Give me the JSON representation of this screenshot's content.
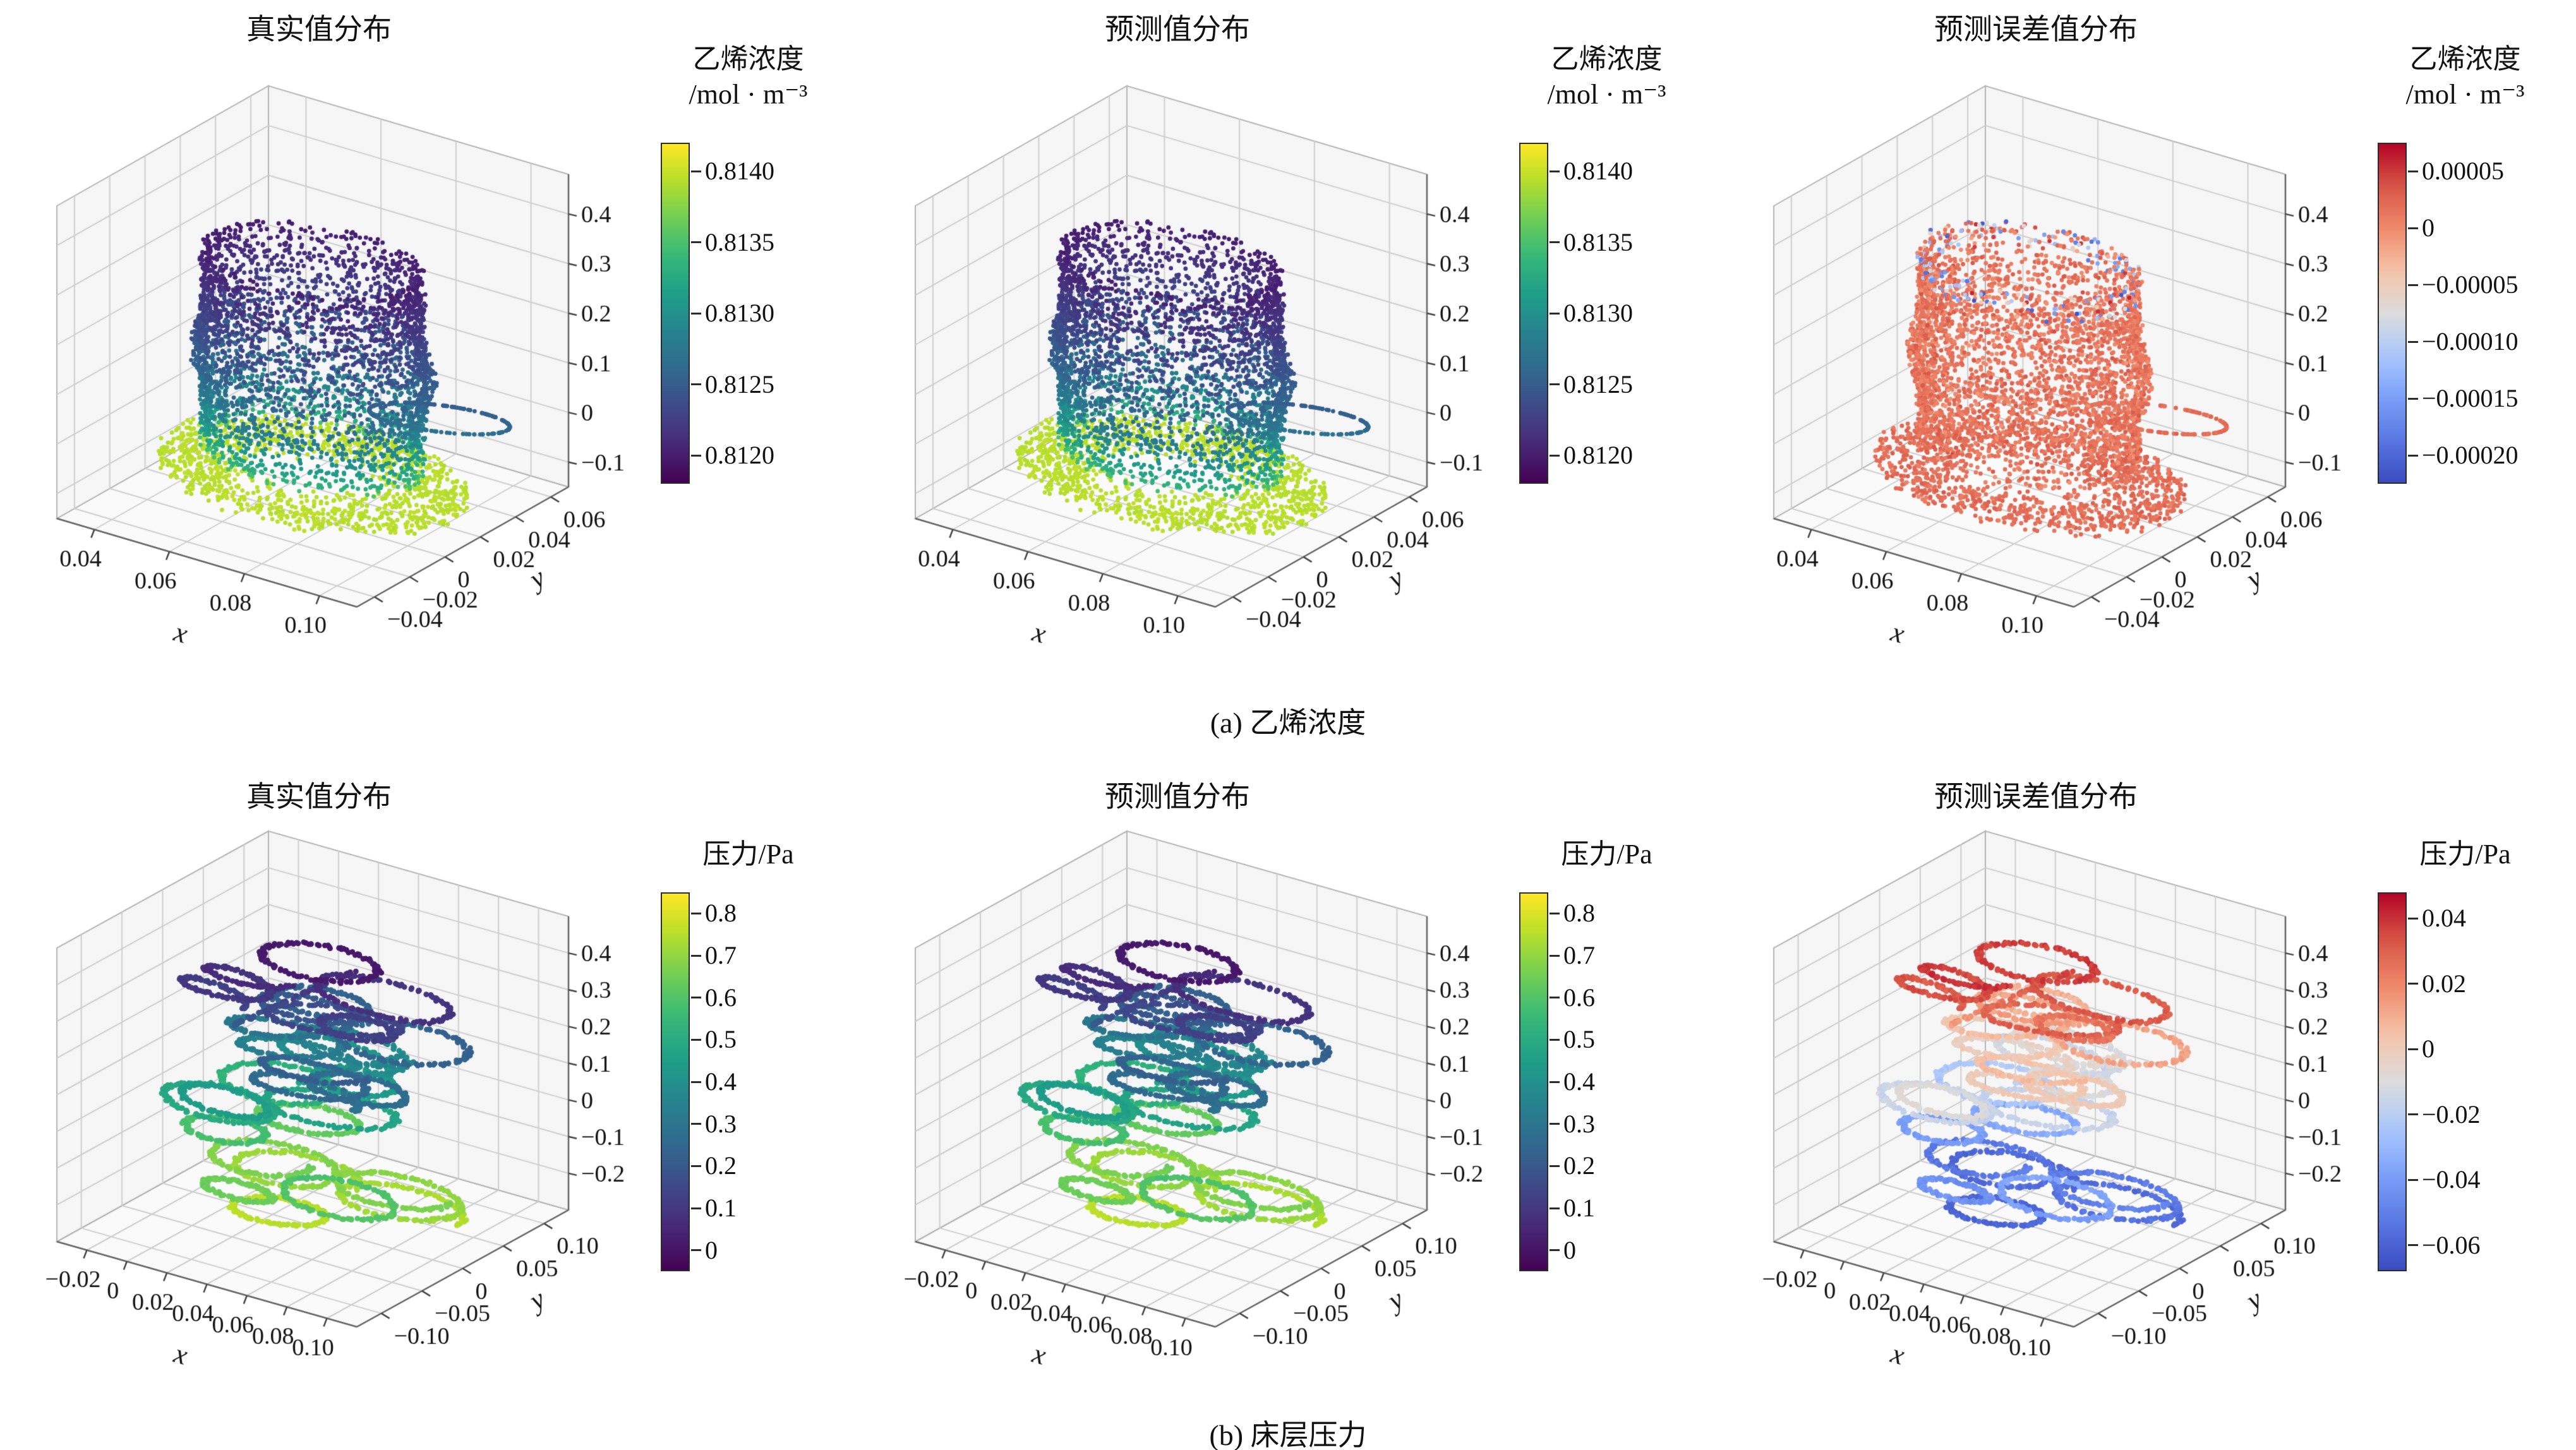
{
  "figure": {
    "background": "#ffffff",
    "captions": {
      "a": "(a) 乙烯浓度",
      "b": "(b) 床层压力"
    }
  },
  "chart_data": [
    {
      "id": "a1",
      "type": "scatter",
      "projection": "3d",
      "title": "真实值分布",
      "description": "cylindrical point cloud of true ethylene concentration",
      "x": {
        "label": "x",
        "lim": [
          0.03,
          0.11
        ],
        "tick_values": [
          0.04,
          0.06,
          0.08,
          0.1
        ],
        "tick_labels": [
          "0.04",
          "0.06",
          "0.08",
          "0.10"
        ]
      },
      "y": {
        "label": "y",
        "lim": [
          -0.05,
          0.07
        ],
        "tick_values": [
          0.06,
          0.04,
          0.02,
          0,
          -0.02,
          -0.04
        ],
        "tick_labels": [
          "0.06",
          "0.04",
          "0.02",
          "0",
          "−0.02",
          "−0.04"
        ]
      },
      "z": {
        "lim": [
          -0.15,
          0.48
        ],
        "tick_values": [
          0.4,
          0.3,
          0.2,
          0.1,
          0,
          -0.1
        ],
        "tick_labels": [
          "0.4",
          "0.3",
          "0.2",
          "0.1",
          "0",
          "−0.1"
        ]
      },
      "colorbar": {
        "title_line1": "乙烯浓度",
        "title_line2": "/mol · m⁻³",
        "colormap": "viridis",
        "vmin": 0.8118,
        "vmax": 0.8142,
        "tick_values": [
          0.814,
          0.8135,
          0.813,
          0.8125,
          0.812
        ],
        "tick_labels": [
          "0.8140",
          "0.8135",
          "0.8130",
          "0.8125",
          "0.8120"
        ]
      },
      "points": {
        "kind": "cylinder",
        "seed": 11,
        "center": [
          0.07,
          0.01
        ],
        "radius": 0.026,
        "z_range": [
          -0.07,
          0.34
        ],
        "value_model": "concentration",
        "value_range": [
          0.812,
          0.814
        ]
      }
    },
    {
      "id": "a2",
      "type": "scatter",
      "projection": "3d",
      "title": "预测值分布",
      "description": "cylindrical point cloud of predicted ethylene concentration (visually identical to true values)",
      "x": {
        "label": "x",
        "lim": [
          0.03,
          0.11
        ],
        "tick_values": [
          0.04,
          0.06,
          0.08,
          0.1
        ],
        "tick_labels": [
          "0.04",
          "0.06",
          "0.08",
          "0.10"
        ]
      },
      "y": {
        "label": "y",
        "lim": [
          -0.05,
          0.07
        ],
        "tick_values": [
          0.06,
          0.04,
          0.02,
          0,
          -0.02,
          -0.04
        ],
        "tick_labels": [
          "0.06",
          "0.04",
          "0.02",
          "0",
          "−0.02",
          "−0.04"
        ]
      },
      "z": {
        "lim": [
          -0.15,
          0.48
        ],
        "tick_values": [
          0.4,
          0.3,
          0.2,
          0.1,
          0,
          -0.1
        ],
        "tick_labels": [
          "0.4",
          "0.3",
          "0.2",
          "0.1",
          "0",
          "−0.1"
        ]
      },
      "colorbar": {
        "title_line1": "乙烯浓度",
        "title_line2": "/mol · m⁻³",
        "colormap": "viridis",
        "vmin": 0.8118,
        "vmax": 0.8142,
        "tick_values": [
          0.814,
          0.8135,
          0.813,
          0.8125,
          0.812
        ],
        "tick_labels": [
          "0.8140",
          "0.8135",
          "0.8130",
          "0.8125",
          "0.8120"
        ]
      },
      "points": {
        "kind": "cylinder",
        "seed": 11,
        "center": [
          0.07,
          0.01
        ],
        "radius": 0.026,
        "z_range": [
          -0.07,
          0.34
        ],
        "value_model": "concentration",
        "value_range": [
          0.812,
          0.814
        ]
      }
    },
    {
      "id": "a3",
      "type": "scatter",
      "projection": "3d",
      "title": "预测误差值分布",
      "description": "cylindrical point cloud of ethylene-concentration prediction error; mostly small positive (red), negative (blue) speckles at top rim",
      "x": {
        "label": "x",
        "lim": [
          0.03,
          0.11
        ],
        "tick_values": [
          0.04,
          0.06,
          0.08,
          0.1
        ],
        "tick_labels": [
          "0.04",
          "0.06",
          "0.08",
          "0.10"
        ]
      },
      "y": {
        "label": "y",
        "lim": [
          -0.05,
          0.07
        ],
        "tick_values": [
          0.06,
          0.04,
          0.02,
          0,
          -0.02,
          -0.04
        ],
        "tick_labels": [
          "0.06",
          "0.04",
          "0.02",
          "0",
          "−0.02",
          "−0.04"
        ]
      },
      "z": {
        "lim": [
          -0.15,
          0.48
        ],
        "tick_values": [
          0.4,
          0.3,
          0.2,
          0.1,
          0,
          -0.1
        ],
        "tick_labels": [
          "0.4",
          "0.3",
          "0.2",
          "0.1",
          "0",
          "−0.1"
        ]
      },
      "colorbar": {
        "title_line1": "乙烯浓度",
        "title_line2": "/mol · m⁻³",
        "colormap": "coolwarm",
        "vmin": -0.000225,
        "vmax": 7.5e-05,
        "tick_values": [
          5e-05,
          0,
          -5e-05,
          -0.0001,
          -0.00015,
          -0.0002
        ],
        "tick_labels": [
          "0.00005",
          "0",
          "−0.00005",
          "−0.00010",
          "−0.00015",
          "−0.00020"
        ]
      },
      "points": {
        "kind": "cylinder",
        "seed": 11,
        "center": [
          0.07,
          0.01
        ],
        "radius": 0.026,
        "z_range": [
          -0.07,
          0.34
        ],
        "value_model": "concentration_error",
        "value_range": [
          -0.0002,
          5e-05
        ]
      }
    },
    {
      "id": "b1",
      "type": "scatter",
      "projection": "3d",
      "title": "真实值分布",
      "description": "helical ring point clouds of true bed pressure; pressure decreases with height",
      "x": {
        "label": "x",
        "lim": [
          -0.035,
          0.115
        ],
        "tick_values": [
          -0.02,
          0,
          0.02,
          0.04,
          0.06,
          0.08,
          0.1
        ],
        "tick_labels": [
          "−0.02",
          "0",
          "0.02",
          "0.04",
          "0.06",
          "0.08",
          "0.10"
        ]
      },
      "y": {
        "label": "y",
        "lim": [
          -0.13,
          0.13
        ],
        "tick_values": [
          0.1,
          0.05,
          0,
          -0.05,
          -0.1
        ],
        "tick_labels": [
          "0.10",
          "0.05",
          "0",
          "−0.05",
          "−0.10"
        ]
      },
      "z": {
        "lim": [
          -0.3,
          0.5
        ],
        "tick_values": [
          0.4,
          0.3,
          0.2,
          0.1,
          0,
          -0.1,
          -0.2
        ],
        "tick_labels": [
          "0.4",
          "0.3",
          "0.2",
          "0.1",
          "0",
          "−0.1",
          "−0.2"
        ]
      },
      "colorbar": {
        "title_line1": "压力/Pa",
        "title_line2": "",
        "colormap": "viridis",
        "vmin": -0.05,
        "vmax": 0.85,
        "tick_values": [
          0.8,
          0.7,
          0.6,
          0.5,
          0.4,
          0.3,
          0.2,
          0.1,
          0
        ],
        "tick_labels": [
          "0.8",
          "0.7",
          "0.6",
          "0.5",
          "0.4",
          "0.3",
          "0.2",
          "0.1",
          "0"
        ]
      },
      "points": {
        "kind": "rings",
        "seed": 21,
        "n_rings": 24,
        "x_range": [
          0.0,
          0.08
        ],
        "y_range": [
          -0.07,
          0.07
        ],
        "z_range": [
          -0.24,
          0.42
        ],
        "value_model": "pressure",
        "value_range": [
          0,
          0.8
        ]
      }
    },
    {
      "id": "b2",
      "type": "scatter",
      "projection": "3d",
      "title": "预测值分布",
      "description": "helical ring point clouds of predicted bed pressure (visually identical to true values)",
      "x": {
        "label": "x",
        "lim": [
          -0.035,
          0.115
        ],
        "tick_values": [
          -0.02,
          0,
          0.02,
          0.04,
          0.06,
          0.08,
          0.1
        ],
        "tick_labels": [
          "−0.02",
          "0",
          "0.02",
          "0.04",
          "0.06",
          "0.08",
          "0.10"
        ]
      },
      "y": {
        "label": "y",
        "lim": [
          -0.13,
          0.13
        ],
        "tick_values": [
          0.1,
          0.05,
          0,
          -0.05,
          -0.1
        ],
        "tick_labels": [
          "0.10",
          "0.05",
          "0",
          "−0.05",
          "−0.10"
        ]
      },
      "z": {
        "lim": [
          -0.3,
          0.5
        ],
        "tick_values": [
          0.4,
          0.3,
          0.2,
          0.1,
          0,
          -0.1,
          -0.2
        ],
        "tick_labels": [
          "0.4",
          "0.3",
          "0.2",
          "0.1",
          "0",
          "−0.1",
          "−0.2"
        ]
      },
      "colorbar": {
        "title_line1": "压力/Pa",
        "title_line2": "",
        "colormap": "viridis",
        "vmin": -0.05,
        "vmax": 0.85,
        "tick_values": [
          0.8,
          0.7,
          0.6,
          0.5,
          0.4,
          0.3,
          0.2,
          0.1,
          0
        ],
        "tick_labels": [
          "0.8",
          "0.7",
          "0.6",
          "0.5",
          "0.4",
          "0.3",
          "0.2",
          "0.1",
          "0"
        ]
      },
      "points": {
        "kind": "rings",
        "seed": 21,
        "n_rings": 24,
        "x_range": [
          0.0,
          0.08
        ],
        "y_range": [
          -0.07,
          0.07
        ],
        "z_range": [
          -0.24,
          0.42
        ],
        "value_model": "pressure",
        "value_range": [
          0,
          0.8
        ]
      }
    },
    {
      "id": "b3",
      "type": "scatter",
      "projection": "3d",
      "title": "预测误差值分布",
      "description": "helical ring point clouds of bed-pressure prediction error; positive (red) near top, negative (blue) near bottom",
      "x": {
        "label": "x",
        "lim": [
          -0.035,
          0.115
        ],
        "tick_values": [
          -0.02,
          0,
          0.02,
          0.04,
          0.06,
          0.08,
          0.1
        ],
        "tick_labels": [
          "−0.02",
          "0",
          "0.02",
          "0.04",
          "0.06",
          "0.08",
          "0.10"
        ]
      },
      "y": {
        "label": "y",
        "lim": [
          -0.13,
          0.13
        ],
        "tick_values": [
          0.1,
          0.05,
          0,
          -0.05,
          -0.1
        ],
        "tick_labels": [
          "0.10",
          "0.05",
          "0",
          "−0.05",
          "−0.10"
        ]
      },
      "z": {
        "lim": [
          -0.3,
          0.5
        ],
        "tick_values": [
          0.4,
          0.3,
          0.2,
          0.1,
          0,
          -0.1,
          -0.2
        ],
        "tick_labels": [
          "0.4",
          "0.3",
          "0.2",
          "0.1",
          "0",
          "−0.1",
          "−0.2"
        ]
      },
      "colorbar": {
        "title_line1": "压力/Pa",
        "title_line2": "",
        "colormap": "coolwarm",
        "vmin": -0.068,
        "vmax": 0.048,
        "tick_values": [
          0.04,
          0.02,
          0,
          -0.02,
          -0.04,
          -0.06
        ],
        "tick_labels": [
          "0.04",
          "0.02",
          "0",
          "−0.02",
          "−0.04",
          "−0.06"
        ]
      },
      "points": {
        "kind": "rings",
        "seed": 21,
        "n_rings": 24,
        "x_range": [
          0.0,
          0.08
        ],
        "y_range": [
          -0.07,
          0.07
        ],
        "z_range": [
          -0.24,
          0.42
        ],
        "value_model": "pressure_error",
        "value_range": [
          -0.06,
          0.04
        ]
      }
    }
  ]
}
